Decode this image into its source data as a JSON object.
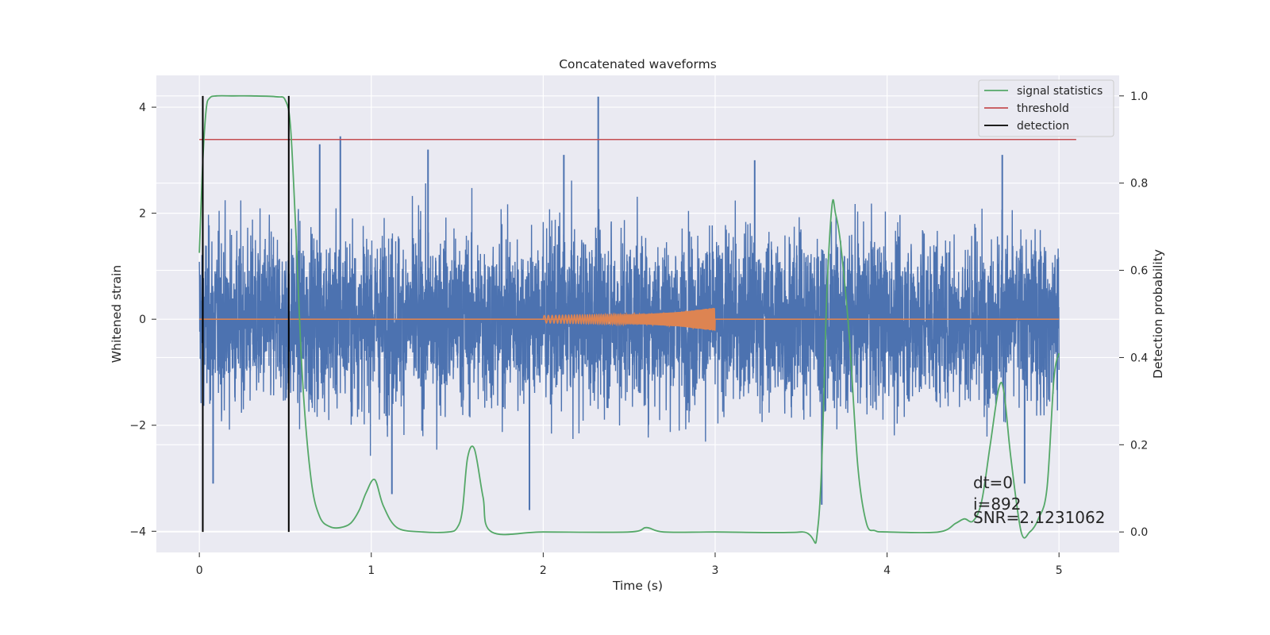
{
  "chart_data": {
    "type": "line",
    "title": "Concatenated waveforms",
    "xlabel": "Time (s)",
    "ylabel": "Whitened strain",
    "y2label": "Detection probability",
    "xlim": [
      -0.25,
      5.35
    ],
    "ylim": [
      -4.4,
      4.6
    ],
    "y2lim": [
      -0.047,
      1.047
    ],
    "xticks": [
      0,
      1,
      2,
      3,
      4,
      5
    ],
    "yticks": [
      -4,
      -2,
      0,
      2,
      4
    ],
    "y2ticks": [
      0.0,
      0.2,
      0.4,
      0.6,
      0.8,
      1.0
    ],
    "xtick_labels": [
      "0",
      "1",
      "2",
      "3",
      "4",
      "5"
    ],
    "ytick_labels": [
      "−4",
      "−2",
      "0",
      "2",
      "4"
    ],
    "y2tick_labels": [
      "0.0",
      "0.2",
      "0.4",
      "0.6",
      "0.8",
      "1.0"
    ],
    "grid": true,
    "legend_placement": "top-right",
    "colors": {
      "background": "#EAEAF2",
      "grid": "#FFFFFF",
      "noise": "#4C72B0",
      "injection": "#DD8452",
      "statistic": "#55A868",
      "threshold": "#C44E52",
      "detection": "#000000"
    },
    "series": [
      {
        "name": "",
        "role": "noise",
        "axis": "left",
        "x_range": [
          0,
          5
        ],
        "description_values": "whitened noise, mostly within ±2.5 with spikes",
        "spikes": [
          {
            "x": 0.7,
            "y": 3.3
          },
          {
            "x": 0.82,
            "y": 3.45
          },
          {
            "x": 2.32,
            "y": 4.2
          },
          {
            "x": 4.67,
            "y": 3.1
          },
          {
            "x": 3.62,
            "y": -3.5
          },
          {
            "x": 1.92,
            "y": -3.6
          },
          {
            "x": 0.08,
            "y": -3.1
          },
          {
            "x": 4.8,
            "y": -3.1
          },
          {
            "x": 1.12,
            "y": -3.3
          },
          {
            "x": 3.23,
            "y": 3.0
          },
          {
            "x": 2.12,
            "y": 3.1
          },
          {
            "x": 1.33,
            "y": 3.2
          }
        ]
      },
      {
        "name": "",
        "role": "injection",
        "axis": "left",
        "x": [
          2.0,
          2.2,
          2.4,
          2.6,
          2.8,
          2.9,
          3.0
        ],
        "amplitude": [
          0.07,
          0.08,
          0.09,
          0.1,
          0.14,
          0.18,
          0.22
        ]
      },
      {
        "name": "signal statistics",
        "role": "statistic",
        "axis": "right",
        "x": [
          0.0,
          0.02,
          0.04,
          0.06,
          0.1,
          0.2,
          0.3,
          0.45,
          0.5,
          0.53,
          0.56,
          0.6,
          0.65,
          0.7,
          0.76,
          0.82,
          0.88,
          0.93,
          0.97,
          1.02,
          1.07,
          1.15,
          1.3,
          1.45,
          1.5,
          1.53,
          1.56,
          1.6,
          1.65,
          1.7,
          2.0,
          2.5,
          2.6,
          2.7,
          3.0,
          3.5,
          3.6,
          3.65,
          3.68,
          3.7,
          3.73,
          3.78,
          3.83,
          3.88,
          3.93,
          4.0,
          4.3,
          4.4,
          4.45,
          4.5,
          4.55,
          4.6,
          4.65,
          4.68,
          4.72,
          4.78,
          4.83,
          4.88,
          4.93,
          4.97,
          5.0
        ],
        "values": [
          0.64,
          0.85,
          0.97,
          0.995,
          1.0,
          1.0,
          1.0,
          0.998,
          0.99,
          0.93,
          0.7,
          0.35,
          0.12,
          0.035,
          0.012,
          0.01,
          0.02,
          0.05,
          0.09,
          0.12,
          0.06,
          0.01,
          0.0,
          0.0,
          0.01,
          0.05,
          0.17,
          0.19,
          0.08,
          0.0,
          0.0,
          0.0,
          0.01,
          0.0,
          0.0,
          0.0,
          0.02,
          0.55,
          0.75,
          0.73,
          0.66,
          0.45,
          0.15,
          0.02,
          0.003,
          0.0,
          0.0,
          0.02,
          0.03,
          0.025,
          0.07,
          0.2,
          0.33,
          0.32,
          0.17,
          0.0,
          0.0,
          0.03,
          0.1,
          0.35,
          0.41
        ]
      },
      {
        "name": "threshold",
        "role": "threshold",
        "axis": "right",
        "x": [
          0.0,
          5.1
        ],
        "values": [
          0.9,
          0.9
        ]
      },
      {
        "name": "detection",
        "role": "detection",
        "axis": "right",
        "vlines_x": [
          0.02,
          0.52
        ],
        "vlines_span": [
          0.0,
          1.0
        ]
      }
    ],
    "annotations": {
      "dt": "dt=0",
      "i": "i=892",
      "snr": "SNR=2.1231062"
    }
  }
}
